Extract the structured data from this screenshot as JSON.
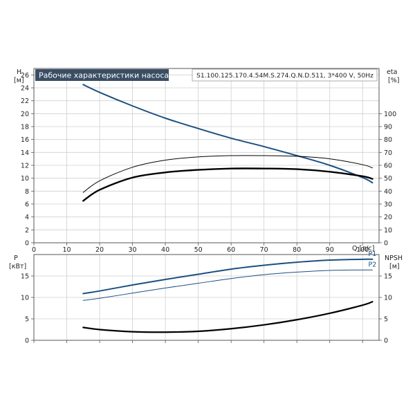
{
  "header": {
    "title": "Рабочие характеристики насоса",
    "model": "S1.100.125.170.4.54M.S.274.Q.N.D.511, 3*400 V, 50Hz"
  },
  "colors": {
    "blue": "#1b4f80",
    "black": "#000000",
    "grid": "#cfcfcf",
    "title_bg": "#3a4e63"
  },
  "chart_data": [
    {
      "type": "line",
      "x_axis": {
        "label": "Q [л/с]",
        "range": [
          0,
          105
        ],
        "ticks": [
          0,
          10,
          20,
          30,
          40,
          50,
          60,
          70,
          80,
          90,
          100
        ]
      },
      "y_left": {
        "label_top": "H",
        "label_unit": "[м]",
        "range": [
          0,
          27
        ],
        "ticks": [
          0,
          2,
          4,
          6,
          8,
          10,
          12,
          14,
          16,
          18,
          20,
          22,
          24,
          26
        ]
      },
      "y_right": {
        "label_top": "eta",
        "label_unit": "[%]",
        "range": [
          0,
          135
        ],
        "ticks": [
          0,
          10,
          20,
          30,
          40,
          50,
          60,
          70,
          80,
          90,
          100
        ]
      },
      "grid": true,
      "series": [
        {
          "axis": "left",
          "color": "#1b4f80",
          "width": 2,
          "x": [
            15,
            20,
            30,
            40,
            50,
            60,
            70,
            80,
            90,
            100,
            103
          ],
          "y": [
            24.5,
            23.3,
            21.2,
            19.3,
            17.7,
            16.2,
            14.9,
            13.5,
            12.0,
            10.1,
            9.3
          ]
        },
        {
          "axis": "left",
          "color": "#000000",
          "width": 1,
          "x": [
            15,
            20,
            30,
            40,
            50,
            60,
            70,
            80,
            90,
            100,
            103
          ],
          "y": [
            7.8,
            9.6,
            11.7,
            12.8,
            13.3,
            13.5,
            13.5,
            13.4,
            13.0,
            12.1,
            11.6
          ]
        },
        {
          "axis": "left",
          "color": "#000000",
          "width": 2.4,
          "x": [
            15,
            20,
            30,
            40,
            50,
            60,
            70,
            80,
            90,
            100,
            103
          ],
          "y": [
            6.5,
            8.2,
            10.1,
            10.9,
            11.3,
            11.5,
            11.5,
            11.4,
            11.0,
            10.3,
            9.9
          ]
        }
      ]
    },
    {
      "type": "line",
      "x_axis": {
        "range": [
          0,
          105
        ],
        "ticks": [
          0,
          10,
          20,
          30,
          40,
          50,
          60,
          70,
          80,
          90,
          100
        ]
      },
      "y_left": {
        "label_top": "P",
        "label_unit": "[кВт]",
        "range": [
          0,
          20
        ],
        "ticks": [
          0,
          5,
          10,
          15
        ]
      },
      "y_right": {
        "label_top": "NPSH",
        "label_unit": "[м]",
        "range": [
          0,
          20
        ],
        "ticks": [
          0,
          5,
          10,
          15
        ]
      },
      "grid": true,
      "series": [
        {
          "name": "P1",
          "axis": "left",
          "color": "#1b4f80",
          "width": 2,
          "x": [
            15,
            20,
            30,
            40,
            50,
            60,
            70,
            80,
            90,
            100,
            103
          ],
          "y": [
            10.9,
            11.5,
            12.9,
            14.2,
            15.4,
            16.6,
            17.5,
            18.2,
            18.7,
            18.9,
            18.9
          ]
        },
        {
          "name": "P2",
          "axis": "left",
          "color": "#1b4f80",
          "width": 1,
          "x": [
            15,
            20,
            30,
            40,
            50,
            60,
            70,
            80,
            90,
            100,
            103
          ],
          "y": [
            9.3,
            9.8,
            11.0,
            12.2,
            13.3,
            14.4,
            15.3,
            15.9,
            16.3,
            16.4,
            16.4
          ]
        },
        {
          "axis": "right",
          "color": "#000000",
          "width": 2.2,
          "x": [
            15,
            20,
            30,
            40,
            50,
            60,
            70,
            80,
            90,
            100,
            103
          ],
          "y": [
            3.0,
            2.5,
            2.0,
            1.9,
            2.1,
            2.7,
            3.6,
            4.8,
            6.3,
            8.2,
            9.0
          ]
        }
      ]
    }
  ]
}
